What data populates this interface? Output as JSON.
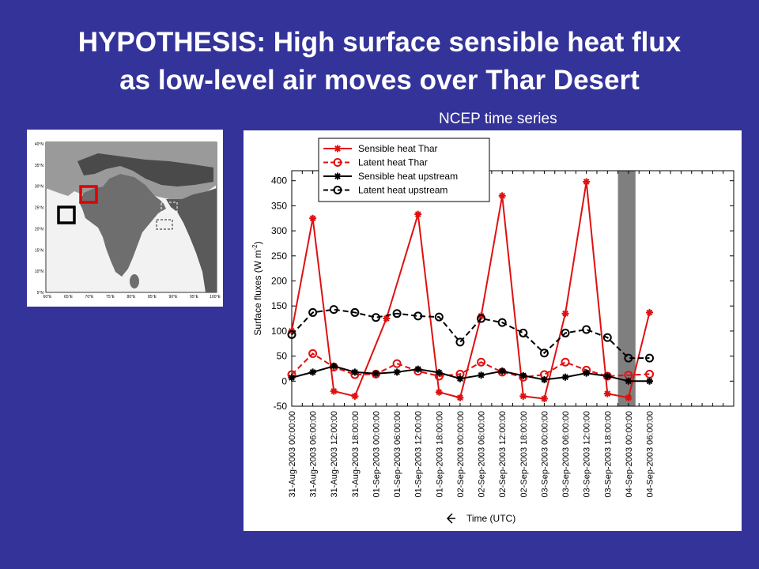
{
  "slide": {
    "title_line1": "HYPOTHESIS: High surface sensible heat flux",
    "title_line2": "as low-level air moves over Thar Desert",
    "subtitle": "NCEP time series"
  },
  "map": {
    "lat_labels": [
      "40°N",
      "35°N",
      "30°N",
      "25°N",
      "20°N",
      "15°N",
      "10°N",
      "5°N"
    ],
    "lon_labels": [
      "60°E",
      "65°E",
      "70°E",
      "75°E",
      "80°E",
      "85°E",
      "90°E",
      "95°E",
      "100°E"
    ],
    "box_thar_color": "#e00000",
    "box_upstream_color": "#000000"
  },
  "chart_data": {
    "type": "line",
    "ylabel": "Surface fluxes (W m",
    "ylabel_sup": "-2",
    "ylabel_end": ")",
    "xlabel": "Time (UTC)",
    "ylim": [
      -50,
      420
    ],
    "yticks": [
      -50,
      0,
      50,
      100,
      150,
      200,
      250,
      300,
      350,
      400
    ],
    "x_tick_labels": [
      "31-Aug-2003 00:00:00",
      "31-Aug-2003 06:00:00",
      "31-Aug-2003 12:00:00",
      "31-Aug-2003 18:00:00",
      "01-Sep-2003 00:00:00",
      "01-Sep-2003 06:00:00",
      "01-Sep-2003 12:00:00",
      "01-Sep-2003 18:00:00",
      "02-Sep-2003 00:00:00",
      "02-Sep-2003 06:00:00",
      "02-Sep-2003 12:00:00",
      "02-Sep-2003 18:00:00",
      "03-Sep-2003 00:00:00",
      "03-Sep-2003 06:00:00",
      "03-Sep-2003 12:00:00",
      "03-Sep-2003 18:00:00",
      "04-Sep-2003 00:00:00",
      "04-Sep-2003 06:00:00"
    ],
    "x_hours": [
      0,
      3,
      6,
      9,
      12,
      15,
      18,
      21,
      24,
      27,
      30,
      33,
      36,
      39,
      42,
      45,
      48,
      51,
      54,
      57,
      60,
      63,
      66,
      69,
      72,
      75,
      78,
      81,
      84,
      87,
      90,
      93,
      96,
      99,
      102,
      105,
      108,
      111,
      114,
      117,
      120,
      123,
      126
    ],
    "x_hours_tick": [
      0,
      6,
      12,
      18,
      24,
      30,
      36,
      42,
      48,
      54,
      60,
      66,
      72,
      78,
      84,
      90,
      96,
      102
    ],
    "shaded_hours": [
      93,
      98
    ],
    "legend_position": "top-left",
    "series": [
      {
        "name": "Sensible heat Thar",
        "color": "#e01010",
        "dash": "solid",
        "marker": "star",
        "x": [
          0,
          6,
          12,
          18,
          27,
          36,
          42,
          48,
          54,
          60,
          66,
          72,
          78,
          84,
          90,
          96,
          102
        ],
        "values": [
          100,
          325,
          -20,
          -30,
          125,
          333,
          -22,
          -33,
          130,
          370,
          -30,
          -35,
          135,
          398,
          -25,
          -33,
          137
        ]
      },
      {
        "name": "Latent heat Thar",
        "color": "#e01010",
        "dash": "dashed",
        "marker": "circle",
        "x": [
          0,
          6,
          12,
          18,
          24,
          30,
          36,
          42,
          48,
          54,
          60,
          66,
          72,
          78,
          84,
          90,
          96,
          102
        ],
        "values": [
          13,
          55,
          28,
          13,
          14,
          35,
          20,
          10,
          14,
          38,
          18,
          8,
          13,
          38,
          22,
          10,
          12,
          14
        ]
      },
      {
        "name": "Sensible heat upstream",
        "color": "#000000",
        "dash": "solid",
        "marker": "star",
        "x": [
          0,
          6,
          12,
          18,
          24,
          30,
          36,
          42,
          48,
          54,
          60,
          66,
          72,
          78,
          84,
          90,
          96,
          102
        ],
        "values": [
          7,
          18,
          30,
          18,
          15,
          18,
          24,
          17,
          5,
          12,
          20,
          11,
          3,
          8,
          16,
          10,
          0,
          0
        ]
      },
      {
        "name": "Latent heat upstream",
        "color": "#000000",
        "dash": "dashed",
        "marker": "circle",
        "x": [
          0,
          6,
          12,
          18,
          24,
          30,
          36,
          42,
          48,
          54,
          60,
          66,
          72,
          78,
          84,
          90,
          96,
          102
        ],
        "values": [
          93,
          137,
          143,
          137,
          127,
          135,
          130,
          128,
          78,
          125,
          117,
          96,
          56,
          96,
          103,
          87,
          46,
          46
        ]
      }
    ]
  }
}
